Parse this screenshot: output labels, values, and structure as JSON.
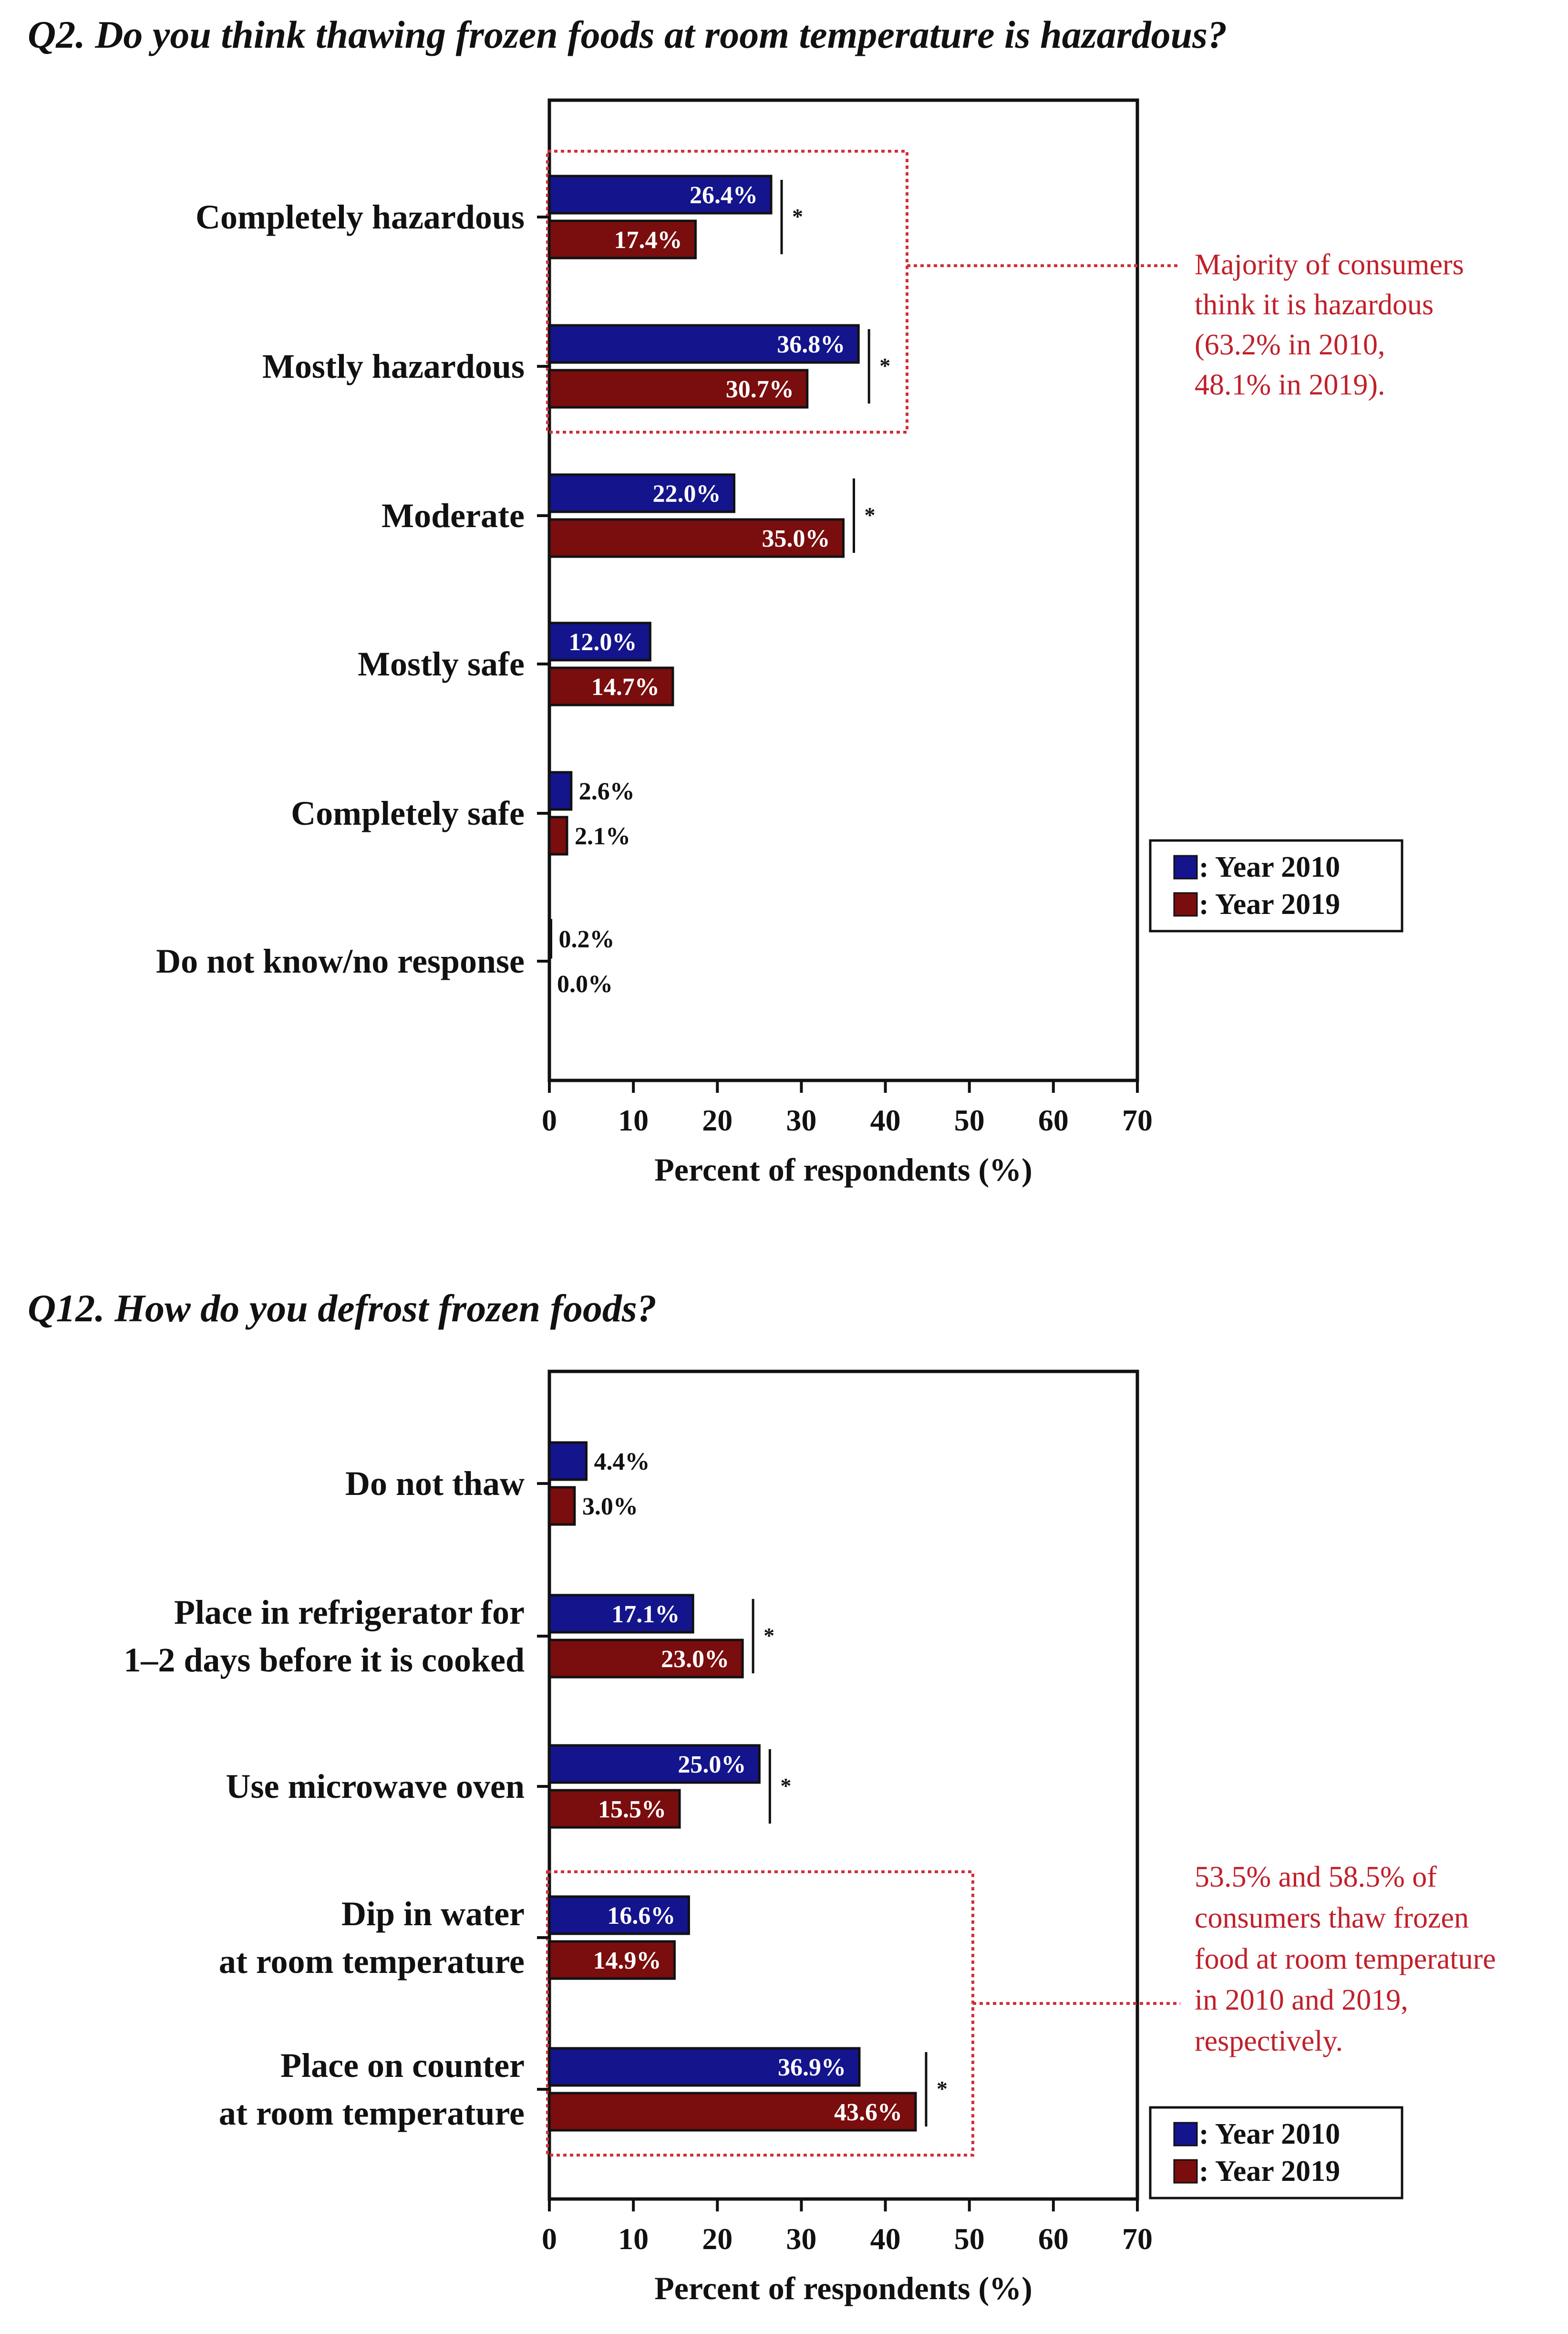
{
  "colors": {
    "year2010": "#14148c",
    "year2019": "#7a0d0d",
    "annotation": "#d0303a"
  },
  "chart_data": [
    {
      "type": "bar",
      "orientation": "horizontal",
      "title": "Q2. Do you think thawing frozen foods at room temperature is hazardous?",
      "xlabel": "Percent of respondents (%)",
      "ylabel": "",
      "xlim": [
        0,
        70
      ],
      "xticks": [
        "0",
        "10",
        "20",
        "30",
        "40",
        "50",
        "60",
        "70"
      ],
      "categories": [
        [
          "Completely hazardous"
        ],
        [
          "Mostly hazardous"
        ],
        [
          "Moderate"
        ],
        [
          "Mostly safe"
        ],
        [
          "Completely safe"
        ],
        [
          "Do not know/no response"
        ]
      ],
      "series": [
        {
          "name": ": Year 2010",
          "values": [
            26.4,
            36.8,
            22.0,
            12.0,
            2.6,
            0.2
          ],
          "labels": [
            "26.4%",
            "36.8%",
            "22.0%",
            "12.0%",
            "2.6%",
            "0.2%"
          ]
        },
        {
          "name": ": Year 2019",
          "values": [
            17.4,
            30.7,
            35.0,
            14.7,
            2.1,
            0.0
          ],
          "labels": [
            "17.4%",
            "30.7%",
            "35.0%",
            "14.7%",
            "2.1%",
            "0.0%"
          ]
        }
      ],
      "significance": [
        true,
        true,
        true,
        false,
        false,
        false
      ],
      "sig_marker": "*",
      "annotation": {
        "lines": [
          "Majority of consumers",
          "think it is hazardous",
          "(63.2% in 2010,",
          " 48.1% in 2019)."
        ],
        "box_categories": [
          0,
          1
        ]
      },
      "legend_position": "bottom-right"
    },
    {
      "type": "bar",
      "orientation": "horizontal",
      "title": "Q12. How do you defrost frozen foods?",
      "xlabel": "Percent of respondents (%)",
      "ylabel": "",
      "xlim": [
        0,
        70
      ],
      "xticks": [
        "0",
        "10",
        "20",
        "30",
        "40",
        "50",
        "60",
        "70"
      ],
      "categories": [
        [
          "Do not thaw"
        ],
        [
          "Place in refrigerator for",
          "1–2 days before it is cooked"
        ],
        [
          "Use microwave oven"
        ],
        [
          "Dip in water",
          "at room temperature"
        ],
        [
          "Place on counter",
          "at room temperature"
        ]
      ],
      "series": [
        {
          "name": ": Year 2010",
          "values": [
            4.4,
            17.1,
            25.0,
            16.6,
            36.9
          ],
          "labels": [
            "4.4%",
            "17.1%",
            "25.0%",
            "16.6%",
            "36.9%"
          ]
        },
        {
          "name": ": Year 2019",
          "values": [
            3.0,
            23.0,
            15.5,
            14.9,
            43.6
          ],
          "labels": [
            "3.0%",
            "23.0%",
            "15.5%",
            "14.9%",
            "43.6%"
          ]
        }
      ],
      "significance": [
        false,
        true,
        true,
        false,
        true
      ],
      "sig_marker": "*",
      "annotation": {
        "lines": [
          "53.5% and 58.5% of",
          "consumers thaw frozen",
          "food at room temperature",
          "in 2010 and 2019,",
          "respectively."
        ],
        "box_categories": [
          3,
          4
        ]
      },
      "legend_position": "bottom-right"
    }
  ]
}
